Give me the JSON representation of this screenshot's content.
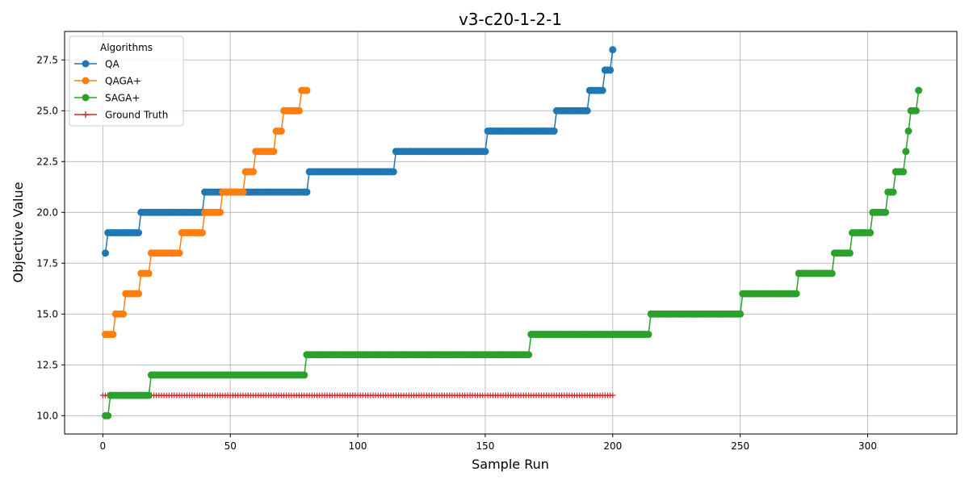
{
  "chart_data": {
    "type": "line",
    "title": "v3-c20-1-2-1",
    "xlabel": "Sample Run",
    "ylabel": "Objective Value",
    "xlim": [
      -15,
      335
    ],
    "ylim": [
      9.1,
      28.9
    ],
    "xticks": [
      0,
      50,
      100,
      150,
      200,
      250,
      300
    ],
    "yticks": [
      10.0,
      12.5,
      15.0,
      17.5,
      20.0,
      22.5,
      25.0,
      27.5
    ],
    "xtick_labels": [
      "0",
      "50",
      "100",
      "150",
      "200",
      "250",
      "300"
    ],
    "ytick_labels": [
      "10.0",
      "12.5",
      "15.0",
      "17.5",
      "20.0",
      "22.5",
      "25.0",
      "27.5"
    ],
    "grid": true,
    "legend": {
      "title": "Algorithms",
      "placement": "top-left"
    },
    "series": [
      {
        "name": "QA",
        "color": "#1f77b4",
        "marker": "circle",
        "x_start": 1,
        "steps": [
          [
            1,
            18
          ],
          [
            2,
            19
          ],
          [
            15,
            20
          ],
          [
            40,
            21
          ],
          [
            81,
            22
          ],
          [
            115,
            23
          ],
          [
            151,
            24
          ],
          [
            178,
            25
          ],
          [
            191,
            26
          ],
          [
            197,
            27
          ],
          [
            200,
            28
          ]
        ],
        "x_end": 200
      },
      {
        "name": "QAGA+",
        "color": "#ff7f0e",
        "marker": "circle",
        "x_start": 1,
        "steps": [
          [
            1,
            14
          ],
          [
            5,
            15
          ],
          [
            9,
            16
          ],
          [
            15,
            17
          ],
          [
            19,
            18
          ],
          [
            31,
            19
          ],
          [
            40,
            20
          ],
          [
            47,
            21
          ],
          [
            56,
            22
          ],
          [
            60,
            23
          ],
          [
            68,
            24
          ],
          [
            71,
            25
          ],
          [
            78,
            26
          ]
        ],
        "x_end": 80
      },
      {
        "name": "SAGA+",
        "color": "#2ca02c",
        "marker": "circle",
        "x_start": 1,
        "steps": [
          [
            1,
            10
          ],
          [
            3,
            11
          ],
          [
            19,
            12
          ],
          [
            80,
            13
          ],
          [
            168,
            14
          ],
          [
            215,
            15
          ],
          [
            251,
            16
          ],
          [
            273,
            17
          ],
          [
            287,
            18
          ],
          [
            294,
            19
          ],
          [
            302,
            20
          ],
          [
            308,
            21
          ],
          [
            311,
            22
          ],
          [
            315,
            23
          ],
          [
            316,
            24
          ],
          [
            317,
            25
          ],
          [
            320,
            26
          ]
        ],
        "x_end": 320
      },
      {
        "name": "Ground Truth",
        "color": "#d62728",
        "marker": "plus",
        "x_start": 0,
        "steps": [
          [
            0,
            11
          ]
        ],
        "x_end": 200
      }
    ]
  }
}
